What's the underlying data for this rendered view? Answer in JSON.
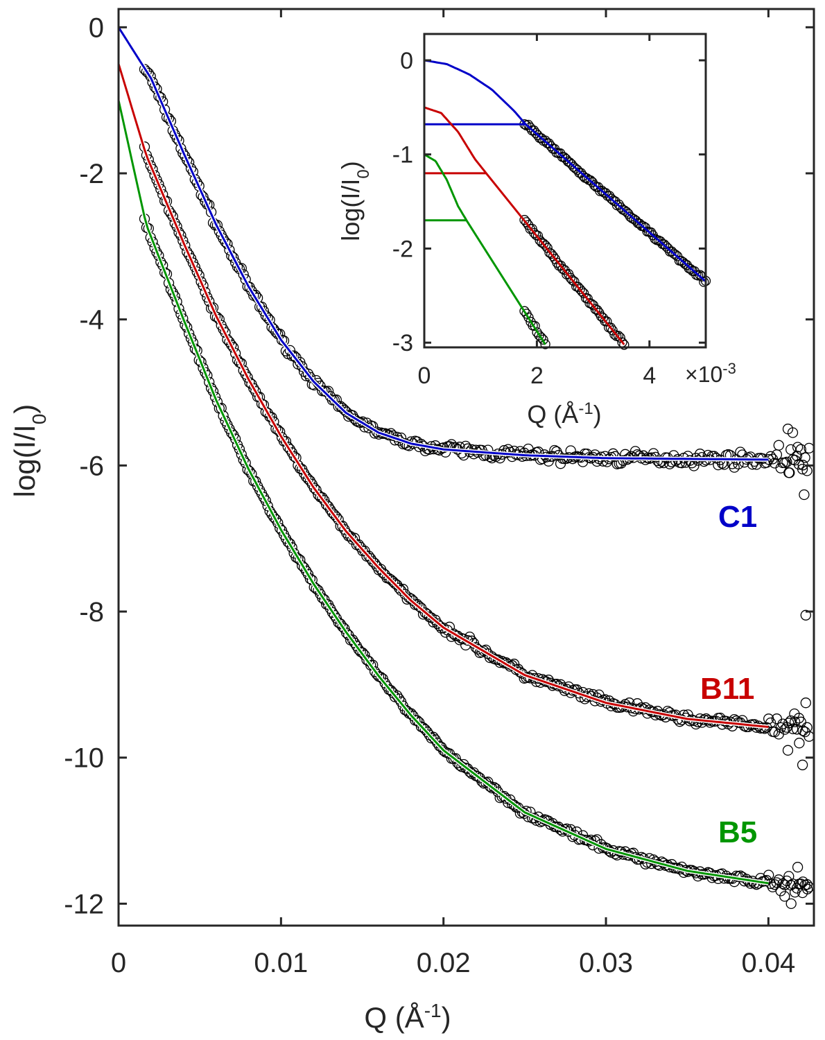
{
  "chart_data": [
    {
      "id": "main",
      "type": "scatter",
      "xlabel": "Q (Å",
      "xlabel_sup": "-1",
      "xlabel_close": ")",
      "ylabel": "log(I/I",
      "ylabel_sub": "0",
      "ylabel_close": ")",
      "xlim": [
        0,
        0.0428
      ],
      "ylim": [
        -12.3,
        0.25
      ],
      "xticks": [
        0,
        0.01,
        0.02,
        0.03,
        0.04
      ],
      "xtick_labels": [
        "0",
        "0.01",
        "0.02",
        "0.03",
        "0.04"
      ],
      "yticks": [
        0,
        -2,
        -4,
        -6,
        -8,
        -10,
        -12
      ],
      "ytick_labels": [
        "0",
        "-2",
        "-4",
        "-6",
        "-8",
        "-10",
        "-12"
      ],
      "grid": false,
      "markers": "open circles (measured data), solid lines (model fits)",
      "series": [
        {
          "name": "C1",
          "color": "#0000c8",
          "fit_q": [
            0,
            0.002,
            0.004,
            0.006,
            0.008,
            0.01,
            0.012,
            0.014,
            0.016,
            0.018,
            0.02,
            0.025,
            0.03,
            0.035,
            0.04
          ],
          "fit_logI": [
            0,
            -0.7,
            -1.72,
            -2.7,
            -3.55,
            -4.28,
            -4.85,
            -5.28,
            -5.55,
            -5.7,
            -5.78,
            -5.86,
            -5.9,
            -5.91,
            -5.92
          ],
          "data_q_start": 0.0016,
          "data_q_end": 0.0425,
          "noise": 0.08,
          "tail_outliers": [
            [
              0.0412,
              -5.5
            ],
            [
              0.0415,
              -5.55
            ],
            [
              0.0418,
              -5.75
            ],
            [
              0.0421,
              -6.05
            ],
            [
              0.0422,
              -6.4
            ],
            [
              0.0413,
              -6.1
            ]
          ]
        },
        {
          "name": "B11",
          "color": "#c80000",
          "fit_q": [
            0,
            0.0017,
            0.004,
            0.006,
            0.008,
            0.01,
            0.012,
            0.014,
            0.016,
            0.018,
            0.02,
            0.025,
            0.03,
            0.035,
            0.04
          ],
          "fit_logI": [
            -0.5,
            -1.75,
            -2.95,
            -3.95,
            -4.82,
            -5.6,
            -6.3,
            -6.9,
            -7.4,
            -7.85,
            -8.22,
            -8.87,
            -9.25,
            -9.47,
            -9.58
          ],
          "data_q_start": 0.0016,
          "data_q_end": 0.0425,
          "noise": 0.06,
          "tail_outliers": [
            [
              0.0423,
              -8.05
            ],
            [
              0.0421,
              -10.1
            ],
            [
              0.0423,
              -9.25
            ],
            [
              0.0419,
              -9.8
            ],
            [
              0.0416,
              -9.4
            ],
            [
              0.0412,
              -9.9
            ]
          ]
        },
        {
          "name": "B5",
          "color": "#009600",
          "fit_q": [
            0,
            0.0017,
            0.004,
            0.006,
            0.008,
            0.01,
            0.012,
            0.014,
            0.016,
            0.018,
            0.02,
            0.025,
            0.03,
            0.035,
            0.04
          ],
          "fit_logI": [
            -1.0,
            -2.7,
            -4.0,
            -5.1,
            -6.05,
            -6.88,
            -7.62,
            -8.28,
            -8.88,
            -9.42,
            -9.9,
            -10.75,
            -11.25,
            -11.55,
            -11.72
          ],
          "data_q_start": 0.0016,
          "data_q_end": 0.0425,
          "noise": 0.05,
          "tail_outliers": [
            [
              0.0418,
              -11.5
            ],
            [
              0.0421,
              -11.85
            ],
            [
              0.0414,
              -12.0
            ],
            [
              0.0424,
              -11.8
            ],
            [
              0.041,
              -11.9
            ]
          ]
        }
      ]
    },
    {
      "id": "inset",
      "type": "scatter",
      "xlabel": "Q (Å",
      "xlabel_sup": "-1",
      "xlabel_close": ")",
      "ylabel": "log(I/I",
      "ylabel_sub": "0",
      "ylabel_close": ")",
      "x_multiplier": "×10",
      "x_multiplier_exp": "-3",
      "xlim": [
        0,
        5
      ],
      "ylim": [
        -3.05,
        0.28
      ],
      "xticks": [
        0,
        2,
        4
      ],
      "xtick_labels": [
        "0",
        "2",
        "4"
      ],
      "yticks": [
        0,
        -1,
        -2,
        -3
      ],
      "ytick_labels": [
        "0",
        "-1",
        "-2",
        "-3"
      ],
      "grid": false,
      "series": [
        {
          "name": "C1",
          "color": "#0000c8",
          "guinier_q": [
            0,
            0.4,
            0.8,
            1.2,
            1.6,
            1.8
          ],
          "guinier_logI": [
            0,
            -0.04,
            -0.15,
            -0.31,
            -0.54,
            -0.68
          ],
          "plateau_logI": -0.68,
          "plateau_q_end": 1.8,
          "fit_q": [
            1.8,
            5.0
          ],
          "fit_logI": [
            -0.68,
            -2.35
          ],
          "data_q": [
            1.78,
            5.0
          ]
        },
        {
          "name": "B11",
          "color": "#c80000",
          "guinier_q": [
            0,
            0.3,
            0.6,
            0.9,
            1.1
          ],
          "guinier_logI": [
            -0.5,
            -0.56,
            -0.76,
            -1.05,
            -1.2
          ],
          "plateau_logI": -1.2,
          "plateau_q_end": 1.1,
          "fit_q": [
            1.1,
            3.55
          ],
          "fit_logI": [
            -1.2,
            -3.02
          ],
          "data_q": [
            1.78,
            3.55
          ]
        },
        {
          "name": "B5",
          "color": "#009600",
          "guinier_q": [
            0,
            0.2,
            0.4,
            0.6,
            0.75
          ],
          "guinier_logI": [
            -1.0,
            -1.07,
            -1.27,
            -1.55,
            -1.7
          ],
          "plateau_logI": -1.7,
          "plateau_q_end": 0.75,
          "fit_q": [
            0.75,
            2.15
          ],
          "fit_logI": [
            -1.7,
            -3.02
          ],
          "data_q": [
            1.78,
            2.15
          ]
        }
      ]
    }
  ]
}
